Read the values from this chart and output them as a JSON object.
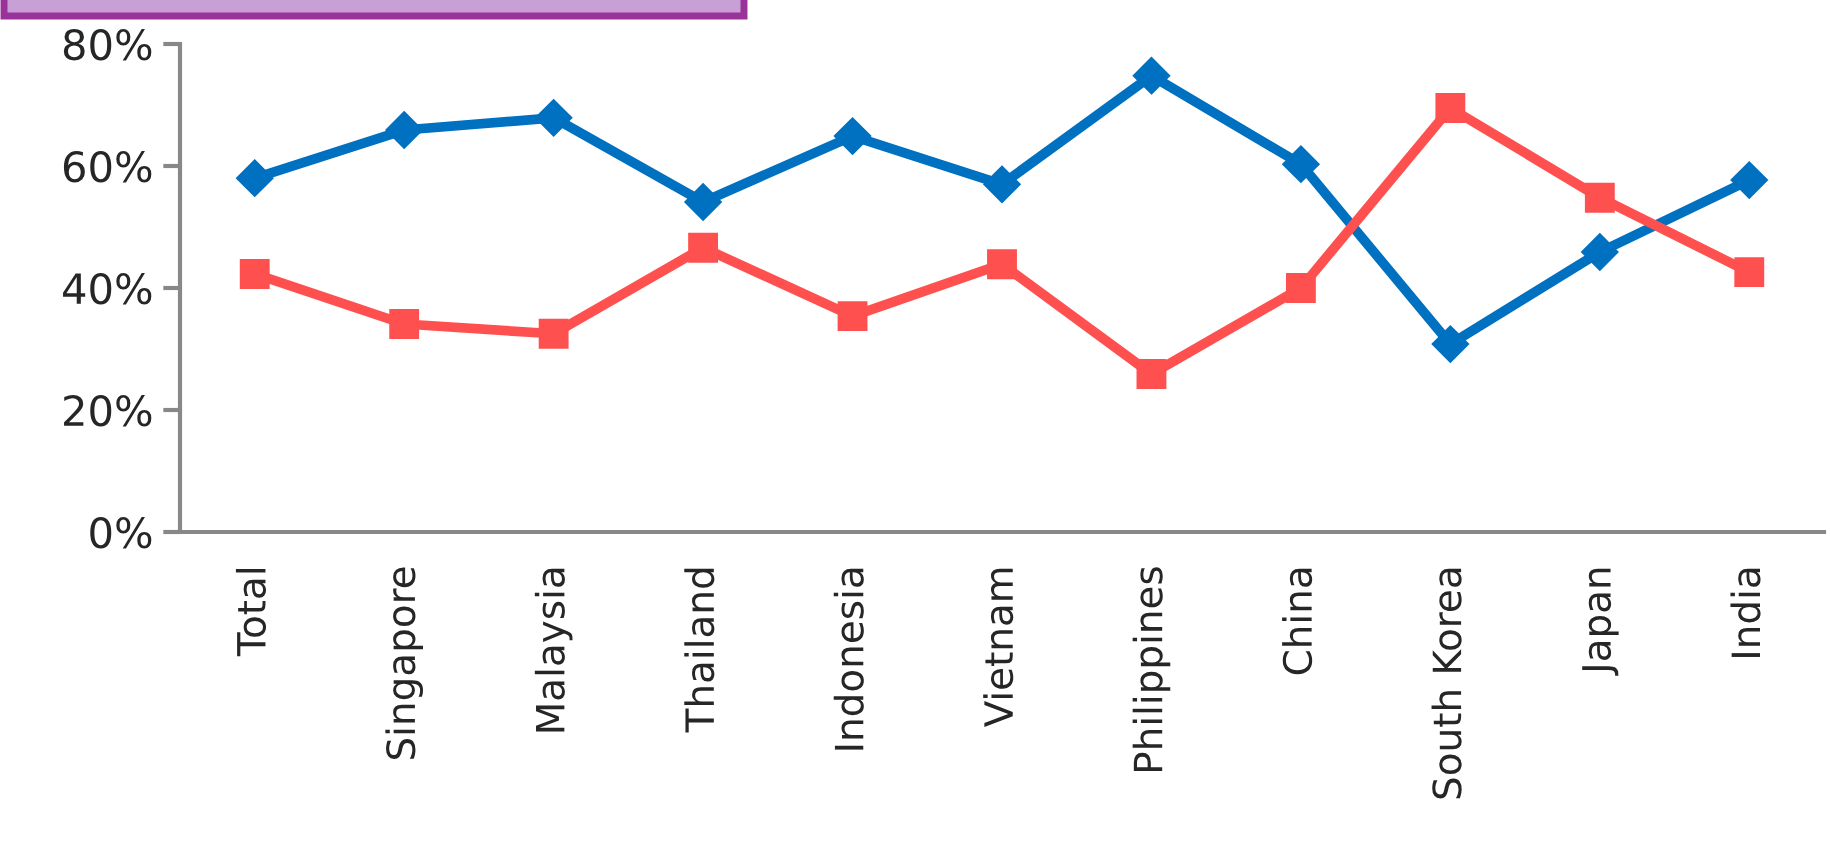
{
  "chart_data": {
    "type": "line",
    "categories": [
      "Total",
      "Singapore",
      "Malaysia",
      "Thailand",
      "Indonesia",
      "Vietnam",
      "Philippines",
      "China",
      "South Korea",
      "Japan",
      "India"
    ],
    "series": [
      {
        "color": "#0070c0",
        "marker": "diamond",
        "values": [
          58,
          65.9,
          67.9,
          54.1,
          64.9,
          57,
          74.8,
          60.3,
          30.8,
          45.9,
          57.7
        ]
      },
      {
        "color": "#ff5050",
        "marker": "square",
        "values": [
          42.3,
          34.1,
          32.5,
          46.6,
          35.4,
          43.9,
          25.9,
          40,
          69.5,
          54.8,
          42.6
        ]
      }
    ],
    "ylim": [
      0,
      80
    ],
    "yticks": [
      {
        "value": 0,
        "label": "0%"
      },
      {
        "value": 20,
        "label": "20%"
      },
      {
        "value": 40,
        "label": "40%"
      },
      {
        "value": 60,
        "label": "60%"
      },
      {
        "value": 80,
        "label": "80%"
      }
    ],
    "grid": false,
    "legend": false,
    "line_style": "solid"
  }
}
